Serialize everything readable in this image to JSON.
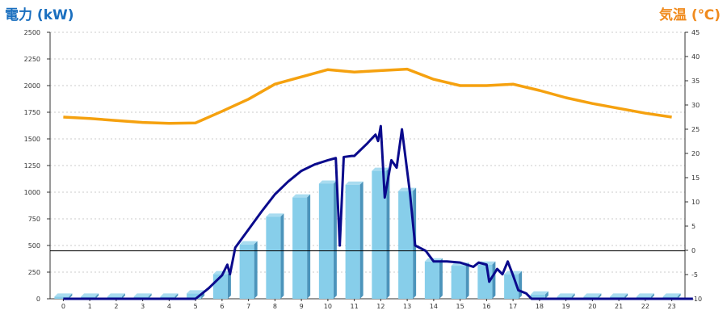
{
  "chart_data": {
    "type": "bar+line",
    "title": "",
    "left_axis_label": "電力 (kW)",
    "right_axis_label": "気温 (℃)",
    "categories": [
      "0",
      "1",
      "2",
      "3",
      "4",
      "5",
      "6",
      "7",
      "8",
      "9",
      "10",
      "11",
      "12",
      "13",
      "14",
      "15",
      "16",
      "17",
      "18",
      "19",
      "20",
      "21",
      "22",
      "23"
    ],
    "left_axis": {
      "min": 0,
      "max": 2500,
      "ticks": [
        0,
        250,
        500,
        750,
        1000,
        1250,
        1500,
        1750,
        2000,
        2250,
        2500
      ]
    },
    "right_axis": {
      "min": -10,
      "max": 45,
      "ticks": [
        -10,
        -5,
        0,
        5,
        10,
        15,
        20,
        25,
        30,
        35,
        40,
        45
      ]
    },
    "bars": {
      "axis": "left",
      "color": "#87ceea",
      "values": [
        20,
        20,
        20,
        20,
        20,
        50,
        230,
        510,
        770,
        950,
        1080,
        1070,
        1200,
        1010,
        350,
        310,
        320,
        230,
        40,
        20,
        20,
        20,
        20,
        20
      ]
    },
    "power_line": {
      "axis": "left",
      "color": "#0a0a8c",
      "points": [
        [
          0,
          0
        ],
        [
          5,
          0
        ],
        [
          5.5,
          100
        ],
        [
          6,
          220
        ],
        [
          6.2,
          320
        ],
        [
          6.3,
          230
        ],
        [
          6.5,
          480
        ],
        [
          7,
          650
        ],
        [
          7.5,
          820
        ],
        [
          8,
          980
        ],
        [
          8.5,
          1100
        ],
        [
          9,
          1200
        ],
        [
          9.5,
          1260
        ],
        [
          10,
          1300
        ],
        [
          10.3,
          1320
        ],
        [
          10.45,
          500
        ],
        [
          10.6,
          1330
        ],
        [
          10.9,
          1340
        ],
        [
          11,
          1340
        ],
        [
          11.5,
          1460
        ],
        [
          11.8,
          1540
        ],
        [
          11.9,
          1480
        ],
        [
          12,
          1620
        ],
        [
          12.15,
          950
        ],
        [
          12.4,
          1300
        ],
        [
          12.6,
          1230
        ],
        [
          12.8,
          1590
        ],
        [
          13.1,
          1000
        ],
        [
          13.3,
          500
        ],
        [
          13.7,
          450
        ],
        [
          14,
          350
        ],
        [
          14.5,
          350
        ],
        [
          15,
          340
        ],
        [
          15.5,
          300
        ],
        [
          15.7,
          340
        ],
        [
          16,
          320
        ],
        [
          16.1,
          160
        ],
        [
          16.4,
          280
        ],
        [
          16.6,
          230
        ],
        [
          16.8,
          350
        ],
        [
          17,
          220
        ],
        [
          17.2,
          80
        ],
        [
          17.5,
          50
        ],
        [
          17.7,
          0
        ],
        [
          23.8,
          0
        ]
      ]
    },
    "temperature_line": {
      "axis": "right",
      "color": "#f5a10f",
      "x": [
        0,
        1,
        2,
        3,
        4,
        5,
        6,
        7,
        8,
        9,
        10,
        11,
        12,
        13,
        14,
        15,
        16,
        17,
        18,
        19,
        20,
        21,
        22,
        23
      ],
      "y": [
        27.5,
        27.2,
        26.8,
        26.4,
        26.2,
        26.3,
        28.7,
        31.2,
        34.3,
        35.8,
        37.3,
        36.8,
        37.1,
        37.4,
        35.3,
        34.0,
        34.0,
        34.3,
        33.0,
        31.5,
        30.3,
        29.3,
        28.3,
        27.5
      ]
    },
    "reference_line": {
      "axis": "left",
      "value": 450,
      "color": "#000000"
    },
    "grid": true
  }
}
